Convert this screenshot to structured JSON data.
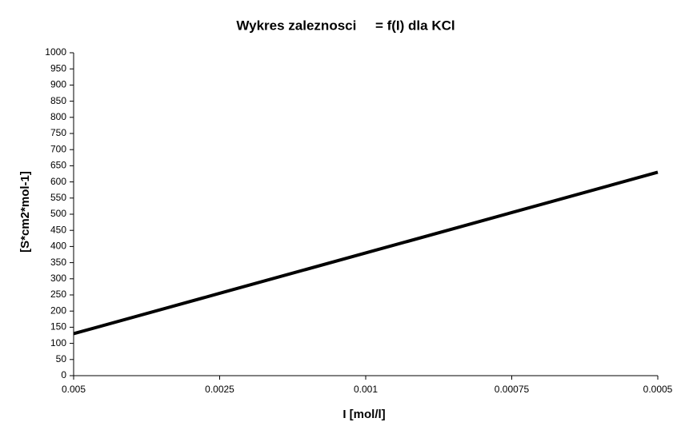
{
  "chart_data": {
    "type": "line",
    "title": "Wykres zaleznosci     = f(I) dla KCl",
    "x_label": "I [mol/l]",
    "y_label": "[S*cm2*mol-1]",
    "categories": [
      "0.005",
      "0.0025",
      "0.001",
      "0.00075",
      "0.0005"
    ],
    "series": [
      {
        "name": "KCl",
        "color": "#000000",
        "values": [
          130,
          255,
          380,
          505,
          630
        ]
      }
    ],
    "ylim": [
      0,
      1000
    ],
    "yticks": [
      0,
      50,
      100,
      150,
      200,
      250,
      300,
      350,
      400,
      450,
      500,
      550,
      600,
      650,
      700,
      750,
      800,
      850,
      900,
      950,
      1000
    ],
    "legend": false
  }
}
